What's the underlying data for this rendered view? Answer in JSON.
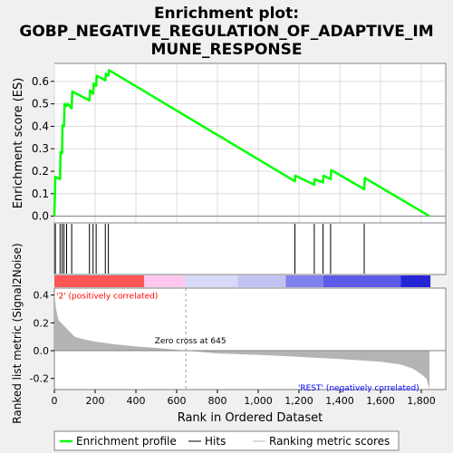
{
  "chart_data": {
    "type": "line",
    "title": "Enrichment plot:\nGOBP_NEGATIVE_REGULATION_OF_ADAPTIVE_IM\nMUNE_RESPONSE",
    "title_lines": [
      "Enrichment plot:",
      "GOBP_NEGATIVE_REGULATION_OF_ADAPTIVE_IM",
      "MUNE_RESPONSE"
    ],
    "es_panel": {
      "ylabel": "Enrichment score (ES)",
      "ylim": [
        -0.03,
        0.68
      ],
      "yticks": [
        0.0,
        0.1,
        0.2,
        0.3,
        0.4,
        0.5,
        0.6
      ],
      "ytick_labels": [
        "0.0",
        "0.1",
        "0.2",
        "0.3",
        "0.4",
        "0.5",
        "0.6"
      ],
      "series": [
        {
          "name": "Enrichment profile",
          "color": "#00ff00",
          "x": [
            0,
            5,
            28,
            30,
            38,
            40,
            47,
            50,
            60,
            65,
            85,
            88,
            172,
            175,
            190,
            193,
            205,
            208,
            250,
            253,
            265,
            268,
            1180,
            1182,
            1275,
            1277,
            1318,
            1320,
            1355,
            1358,
            1520,
            1523,
            1840
          ],
          "y": [
            0.0,
            0.175,
            0.165,
            0.285,
            0.28,
            0.405,
            0.4,
            0.5,
            0.49,
            0.5,
            0.48,
            0.555,
            0.515,
            0.56,
            0.545,
            0.59,
            0.58,
            0.625,
            0.605,
            0.635,
            0.625,
            0.65,
            0.155,
            0.18,
            0.14,
            0.165,
            0.15,
            0.18,
            0.165,
            0.205,
            0.12,
            0.17,
            0.0
          ]
        }
      ]
    },
    "hits": {
      "name": "Hits",
      "positions": [
        5,
        28,
        38,
        47,
        60,
        85,
        172,
        190,
        205,
        250,
        265,
        1180,
        1275,
        1318,
        1355,
        1520
      ]
    },
    "metric_panel": {
      "name": "Ranking metric scores",
      "ylabel": "Ranked list metric (Signal2Noise)",
      "ylim": [
        -0.28,
        0.45
      ],
      "yticks": [
        -0.2,
        0.0,
        0.2,
        0.4
      ],
      "ytick_labels": [
        "-0.2",
        "0.0",
        "0.2",
        "0.4"
      ],
      "profile_x": [
        0,
        8,
        20,
        40,
        60,
        80,
        100,
        150,
        200,
        250,
        300,
        400,
        500,
        645,
        800,
        1000,
        1200,
        1400,
        1600,
        1700,
        1760,
        1800,
        1825,
        1835,
        1840
      ],
      "profile_y": [
        0.42,
        0.3,
        0.22,
        0.19,
        0.16,
        0.13,
        0.1,
        0.08,
        0.065,
        0.055,
        0.045,
        0.03,
        0.02,
        0.0,
        -0.02,
        -0.03,
        -0.045,
        -0.06,
        -0.08,
        -0.1,
        -0.13,
        -0.17,
        -0.2,
        -0.25,
        -0.28
      ],
      "fill_color": "#b4b4b4",
      "zero_cross_label": "Zero cross at 645",
      "zero_cross_x": 645,
      "pos_label": "'2' (positively correlated)",
      "neg_label": "'REST' (negatively correlated)",
      "pos_color": "#ff0000",
      "neg_color": "#0000ff"
    },
    "colorbar": [
      {
        "start": 0,
        "end": 440,
        "color": "#ff5555"
      },
      {
        "start": 440,
        "end": 640,
        "color": "#ffc6ef"
      },
      {
        "start": 640,
        "end": 900,
        "color": "#d8d8f8"
      },
      {
        "start": 900,
        "end": 1135,
        "color": "#c3c3f3"
      },
      {
        "start": 1135,
        "end": 1320,
        "color": "#8080ee"
      },
      {
        "start": 1320,
        "end": 1700,
        "color": "#5b5be8"
      },
      {
        "start": 1700,
        "end": 1845,
        "color": "#2525d6"
      }
    ],
    "x_axis": {
      "xlabel": "Rank in Ordered Dataset",
      "xlim": [
        0,
        1920
      ],
      "ticks": [
        0,
        200,
        400,
        600,
        800,
        1000,
        1200,
        1400,
        1600,
        1800
      ],
      "tick_labels": [
        "0",
        "200",
        "400",
        "600",
        "800",
        "1,000",
        "1,200",
        "1,400",
        "1,600",
        "1,800"
      ]
    },
    "legend": {
      "placement": "bottom",
      "entries": [
        {
          "label": "Enrichment profile",
          "color": "#00ff00"
        },
        {
          "label": "Hits",
          "color": "#000000"
        },
        {
          "label": "Ranking metric scores",
          "color": "#b4b4b4"
        }
      ]
    }
  }
}
